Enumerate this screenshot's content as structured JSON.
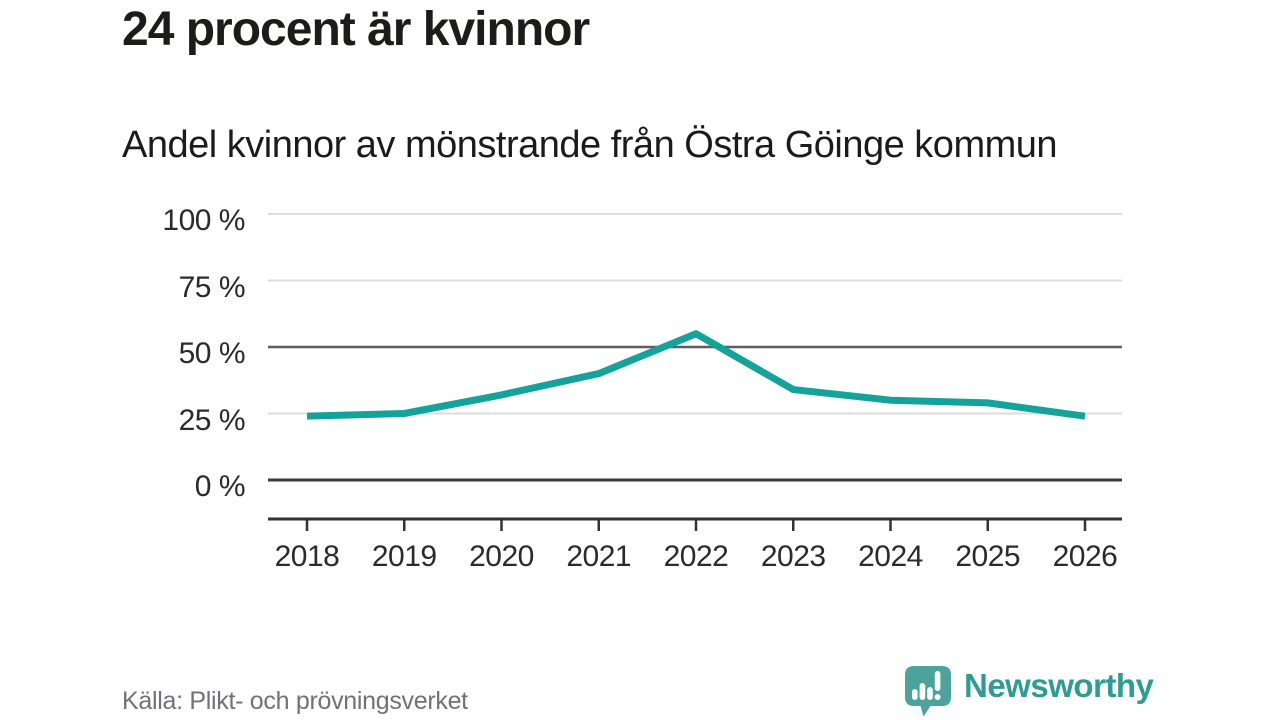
{
  "chart_data": {
    "type": "line",
    "title": "24 procent är kvinnor",
    "subtitle": "Andel kvinnor av mönstrande från Östra Göinge kommun",
    "categories": [
      "2018",
      "2019",
      "2020",
      "2021",
      "2022",
      "2023",
      "2024",
      "2025",
      "2026"
    ],
    "values": [
      24,
      25,
      32,
      40,
      55,
      34,
      30,
      29,
      24
    ],
    "unit": "%",
    "xlabel": "",
    "ylabel": "",
    "ylim": [
      0,
      100
    ],
    "yticks": [
      0,
      25,
      50,
      75,
      100
    ],
    "ytick_labels": [
      "0 %",
      "25 %",
      "50 %",
      "75 %",
      "100 %"
    ],
    "grid": true,
    "legend": "none",
    "line_color": "#13a39a"
  },
  "footer": {
    "source": "Källa: Plikt- och prövningsverket",
    "brand": "Newsworthy",
    "logo_icon": "newsworthy-speech-bubble-barchart-icon"
  },
  "colors": {
    "title_text": "#1c1c18",
    "axis_text": "#2b2b2b",
    "source_text": "#71717a",
    "line": "#13a39a",
    "grid_light": "#dcdcdc",
    "grid_mid": "#5e5e5e",
    "grid_dark": "#3a3a3a",
    "axis": "#333333",
    "logo_bubble": "#4ba39c",
    "logo_text": "#2e9c93"
  }
}
